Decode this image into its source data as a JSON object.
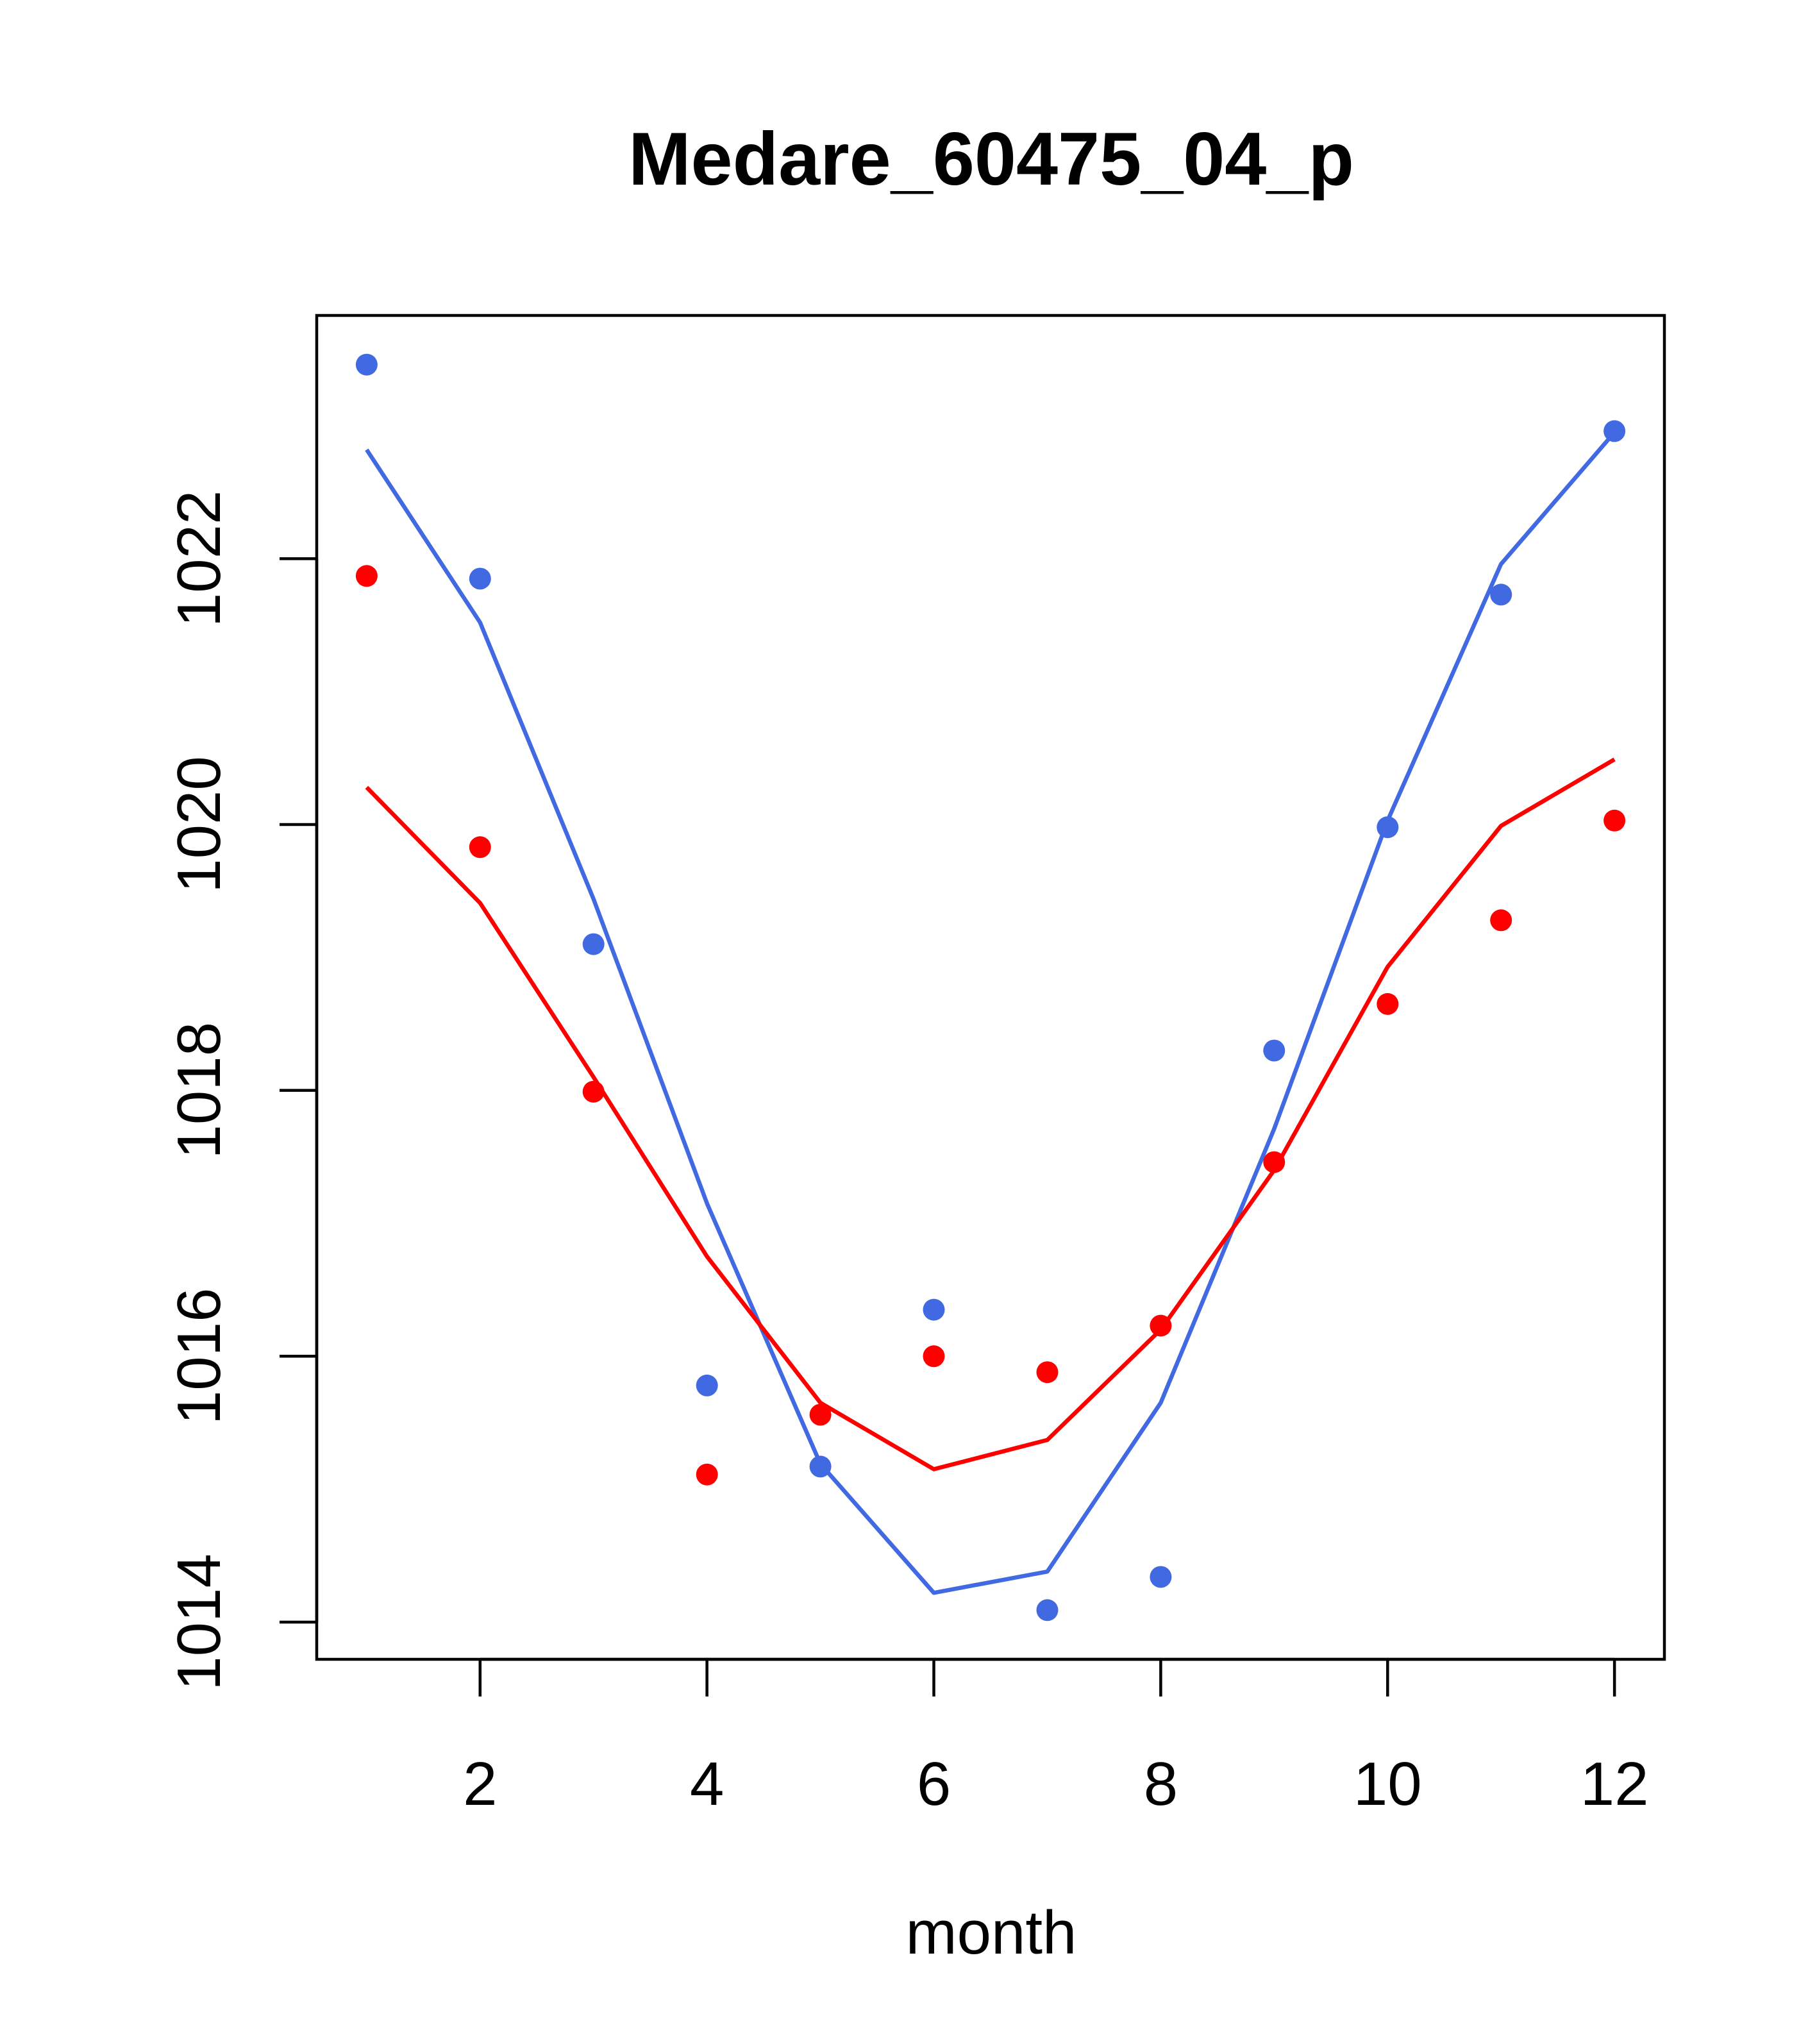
{
  "chart_data": {
    "type": "scatter",
    "title": "Medare_60475_04_p",
    "xlabel": "month",
    "ylabel": "",
    "xlim": [
      0.56,
      12.44
    ],
    "ylim": [
      1013.72,
      1023.83
    ],
    "x_ticks": [
      "2",
      "4",
      "6",
      "8",
      "10",
      "12"
    ],
    "y_ticks": [
      "1014",
      "1016",
      "1018",
      "1020",
      "1022"
    ],
    "x": [
      1,
      2,
      3,
      4,
      5,
      6,
      7,
      8,
      9,
      10,
      11,
      12
    ],
    "series": [
      {
        "name": "blue observed",
        "kind": "points",
        "color": "#4169e1",
        "values": [
          1023.46,
          1021.85,
          1019.1,
          1015.78,
          1015.17,
          1016.35,
          1014.09,
          1014.34,
          1018.3,
          1019.98,
          1021.73,
          1022.96
        ]
      },
      {
        "name": "blue fit",
        "kind": "line",
        "color": "#4169e1",
        "values": [
          1022.82,
          1021.52,
          1019.44,
          1017.15,
          1015.19,
          1014.22,
          1014.38,
          1015.65,
          1017.71,
          1020.03,
          1021.96,
          1022.95
        ]
      },
      {
        "name": "red observed",
        "kind": "points",
        "color": "#ff0000",
        "values": [
          1021.87,
          1019.83,
          1017.99,
          1015.11,
          1015.56,
          1016.0,
          1015.88,
          1016.23,
          1017.46,
          1018.65,
          1019.28,
          1020.03
        ]
      },
      {
        "name": "red fit",
        "kind": "line",
        "color": "#ff0000",
        "values": [
          1020.28,
          1019.41,
          1018.1,
          1016.75,
          1015.65,
          1015.15,
          1015.37,
          1016.2,
          1017.4,
          1018.93,
          1019.99,
          1020.49
        ]
      }
    ]
  }
}
